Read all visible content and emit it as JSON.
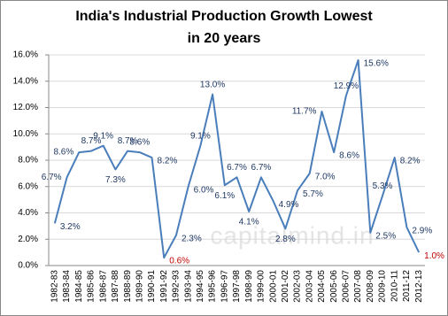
{
  "chart_data": {
    "type": "line",
    "title": "India's Industrial Production Growth Lowest in 20 years",
    "watermark": "capitalmind.in",
    "categories": [
      "1982-83",
      "1983-84",
      "1984-85",
      "1985-86",
      "1986-87",
      "1987-88",
      "1988-89",
      "1989-90",
      "1990-91",
      "1991-92",
      "1992-93",
      "1993-94",
      "1994-95",
      "1995-96",
      "1996-97",
      "1997-98",
      "1998-99",
      "1999-00",
      "2000-01",
      "2001-02",
      "2002-03",
      "2003-04",
      "2004-05",
      "2005-06",
      "2006-07",
      "2007-08",
      "2008-09",
      "2009-10",
      "2010-11",
      "2011-12",
      "2012-13"
    ],
    "series": [
      {
        "color": "#4a7ebb",
        "values": [
          3.2,
          6.7,
          8.6,
          8.7,
          9.1,
          7.3,
          8.7,
          8.6,
          8.2,
          0.6,
          2.3,
          6.0,
          9.1,
          13.0,
          6.1,
          6.7,
          4.1,
          6.7,
          4.9,
          2.8,
          5.7,
          7.0,
          11.7,
          8.6,
          12.9,
          15.6,
          2.5,
          5.3,
          8.2,
          2.9,
          1.0
        ],
        "value_labels": [
          "3.2%",
          "6.7%",
          "8.6%",
          "8.7%",
          "9.1%",
          "7.3%",
          "8.7%",
          "8.6%",
          "8.2%",
          "0.6%",
          "2.3%",
          "6.0%",
          "9.1%",
          "13.0%",
          "6.1%",
          "6.7%",
          "4.1%",
          "6.7%",
          "4.9%",
          "2.8%",
          "5.7%",
          "7.0%",
          "11.7%",
          "8.6%",
          "12.9%",
          "15.6%",
          "2.5%",
          "5.3%",
          "8.2%",
          "2.9%",
          "1.0%"
        ],
        "value_label_colors": [
          "#1f3864",
          "#1f3864",
          "#1f3864",
          "#1f3864",
          "#1f3864",
          "#1f3864",
          "#1f3864",
          "#1f3864",
          "#1f3864",
          "#c00000",
          "#1f3864",
          "#1f3864",
          "#1f3864",
          "#1f3864",
          "#1f3864",
          "#1f3864",
          "#1f3864",
          "#1f3864",
          "#1f3864",
          "#1f3864",
          "#1f3864",
          "#1f3864",
          "#1f3864",
          "#1f3864",
          "#1f3864",
          "#1f3864",
          "#1f3864",
          "#1f3864",
          "#1f3864",
          "#1f3864",
          "#c00000"
        ]
      }
    ],
    "ylim": [
      0,
      16
    ],
    "yticks": [
      {
        "value": 0,
        "label": "0.0%"
      },
      {
        "value": 2,
        "label": "2.0%"
      },
      {
        "value": 4,
        "label": "4.0%"
      },
      {
        "value": 6,
        "label": "6.0%"
      },
      {
        "value": 8,
        "label": "8.0%"
      },
      {
        "value": 10,
        "label": "10.0%"
      },
      {
        "value": 12,
        "label": "12.0%"
      },
      {
        "value": 14,
        "label": "14.0%"
      },
      {
        "value": 16,
        "label": "16.0%"
      }
    ],
    "grid": true
  }
}
